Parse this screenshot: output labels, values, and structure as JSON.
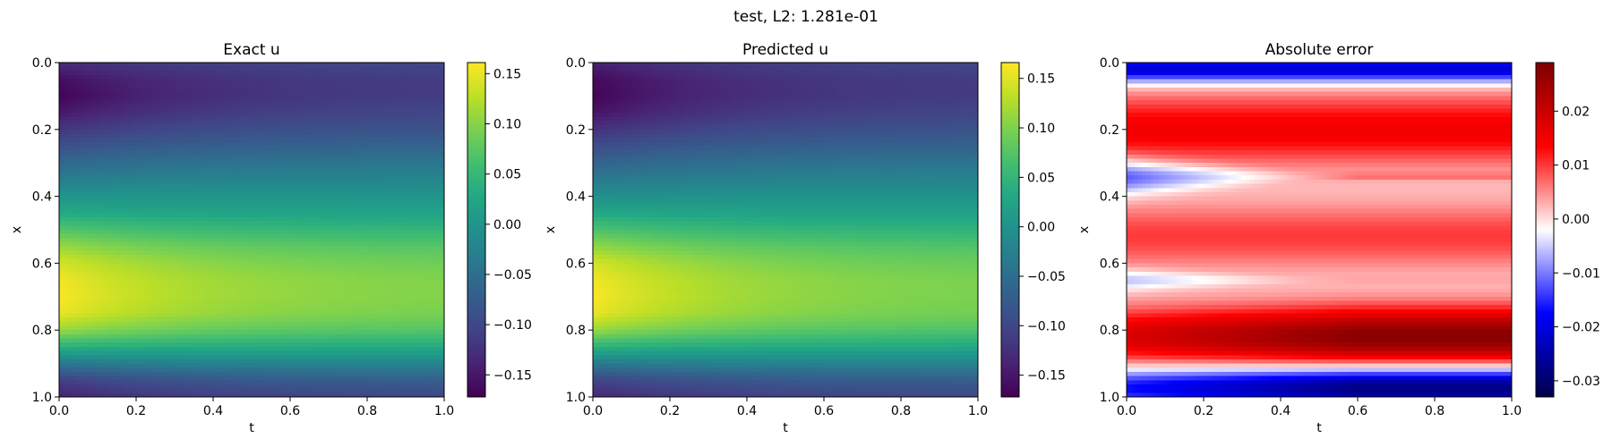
{
  "figure": {
    "suptitle": "test, L2: 1.281e-01"
  },
  "chart_data": [
    {
      "type": "heatmap",
      "title": "Exact u",
      "xlabel": "t",
      "ylabel": "x",
      "xlim": [
        0.0,
        1.0
      ],
      "ylim": [
        0.0,
        1.0
      ],
      "y_inverted": true,
      "colormap": "viridis",
      "clim": [
        -0.172,
        0.161
      ],
      "xticks": [
        "0.0",
        "0.2",
        "0.4",
        "0.6",
        "0.8",
        "1.0"
      ],
      "yticks": [
        "0.0",
        "0.2",
        "0.4",
        "0.6",
        "0.8",
        "1.0"
      ],
      "colorbar_ticks": [
        {
          "value": 0.15,
          "label": "0.15"
        },
        {
          "value": 0.1,
          "label": "0.10"
        },
        {
          "value": 0.05,
          "label": "0.05"
        },
        {
          "value": 0.0,
          "label": "0.00"
        },
        {
          "value": -0.05,
          "label": "−0.05"
        },
        {
          "value": -0.1,
          "label": "−0.10"
        },
        {
          "value": -0.15,
          "label": "−0.15"
        }
      ],
      "field_profile": {
        "x": [
          0.0,
          0.05,
          0.1,
          0.15,
          0.2,
          0.25,
          0.3,
          0.35,
          0.4,
          0.45,
          0.5,
          0.55,
          0.6,
          0.65,
          0.7,
          0.75,
          0.8,
          0.85,
          0.9,
          0.95,
          1.0
        ],
        "u_at_t0": [
          -0.13,
          -0.16,
          -0.17,
          -0.15,
          -0.12,
          -0.09,
          -0.06,
          -0.03,
          0.0,
          0.03,
          0.07,
          0.11,
          0.14,
          0.155,
          0.16,
          0.15,
          0.11,
          0.04,
          -0.04,
          -0.11,
          -0.14
        ],
        "u_at_t1": [
          -0.1,
          -0.11,
          -0.11,
          -0.1,
          -0.085,
          -0.065,
          -0.04,
          -0.02,
          0.0,
          0.02,
          0.045,
          0.07,
          0.085,
          0.095,
          0.095,
          0.09,
          0.07,
          0.03,
          -0.02,
          -0.07,
          -0.1
        ]
      }
    },
    {
      "type": "heatmap",
      "title": "Predicted u",
      "xlabel": "t",
      "ylabel": "x",
      "xlim": [
        0.0,
        1.0
      ],
      "ylim": [
        0.0,
        1.0
      ],
      "y_inverted": true,
      "colormap": "viridis",
      "clim": [
        -0.172,
        0.166
      ],
      "xticks": [
        "0.0",
        "0.2",
        "0.4",
        "0.6",
        "0.8",
        "1.0"
      ],
      "yticks": [
        "0.0",
        "0.2",
        "0.4",
        "0.6",
        "0.8",
        "1.0"
      ],
      "colorbar_ticks": [
        {
          "value": 0.15,
          "label": "0.15"
        },
        {
          "value": 0.1,
          "label": "0.10"
        },
        {
          "value": 0.05,
          "label": "0.05"
        },
        {
          "value": 0.0,
          "label": "0.00"
        },
        {
          "value": -0.05,
          "label": "−0.05"
        },
        {
          "value": -0.1,
          "label": "−0.10"
        },
        {
          "value": -0.15,
          "label": "−0.15"
        }
      ],
      "field_profile": {
        "x": [
          0.0,
          0.05,
          0.1,
          0.15,
          0.2,
          0.25,
          0.3,
          0.35,
          0.4,
          0.45,
          0.5,
          0.55,
          0.6,
          0.65,
          0.7,
          0.75,
          0.8,
          0.85,
          0.9,
          0.95,
          1.0
        ],
        "u_at_t0": [
          -0.14,
          -0.165,
          -0.17,
          -0.155,
          -0.125,
          -0.095,
          -0.065,
          -0.035,
          -0.005,
          0.03,
          0.07,
          0.11,
          0.145,
          0.16,
          0.165,
          0.155,
          0.115,
          0.045,
          -0.035,
          -0.105,
          -0.135
        ],
        "u_at_t1": [
          -0.1,
          -0.11,
          -0.11,
          -0.1,
          -0.085,
          -0.065,
          -0.04,
          -0.02,
          0.0,
          0.02,
          0.045,
          0.07,
          0.085,
          0.095,
          0.095,
          0.09,
          0.07,
          0.03,
          -0.02,
          -0.07,
          -0.1
        ]
      }
    },
    {
      "type": "heatmap",
      "title": "Absolute error",
      "xlabel": "t",
      "ylabel": "x",
      "xlim": [
        0.0,
        1.0
      ],
      "ylim": [
        0.0,
        1.0
      ],
      "y_inverted": true,
      "colormap": "seismic",
      "clim": [
        -0.033,
        0.029
      ],
      "xticks": [
        "0.0",
        "0.2",
        "0.4",
        "0.6",
        "0.8",
        "1.0"
      ],
      "yticks": [
        "0.0",
        "0.2",
        "0.4",
        "0.6",
        "0.8",
        "1.0"
      ],
      "colorbar_ticks": [
        {
          "value": 0.02,
          "label": "0.02"
        },
        {
          "value": 0.01,
          "label": "0.01"
        },
        {
          "value": 0.0,
          "label": "0.00"
        },
        {
          "value": -0.01,
          "label": "−0.01"
        },
        {
          "value": -0.02,
          "label": "−0.02"
        },
        {
          "value": -0.03,
          "label": "−0.03"
        }
      ],
      "error_features": [
        {
          "x_center": 0.02,
          "x_width": 0.04,
          "amplitude": -0.022,
          "note": "blue band at top"
        },
        {
          "x_center": 0.2,
          "x_width": 0.11,
          "amplitude": 0.015,
          "note": "red band"
        },
        {
          "x_center": 0.34,
          "x_width": 0.05,
          "amplitude_t0": -0.015,
          "amplitude_t1": 0.004,
          "note": "blue wedge fading with t"
        },
        {
          "x_center": 0.52,
          "x_width": 0.1,
          "amplitude": 0.01,
          "note": "red band"
        },
        {
          "x_center": 0.65,
          "x_width": 0.03,
          "amplitude_t0": -0.008,
          "amplitude_t1": 0.002,
          "note": "light blue wedge"
        },
        {
          "x_center": 0.82,
          "x_width": 0.09,
          "amplitude_t0": 0.018,
          "amplitude_t1": 0.028,
          "note": "strong red band"
        },
        {
          "x_center": 0.97,
          "x_width": 0.06,
          "amplitude_t0": -0.018,
          "amplitude_t1": -0.03,
          "note": "dark blue band at bottom"
        }
      ]
    }
  ]
}
